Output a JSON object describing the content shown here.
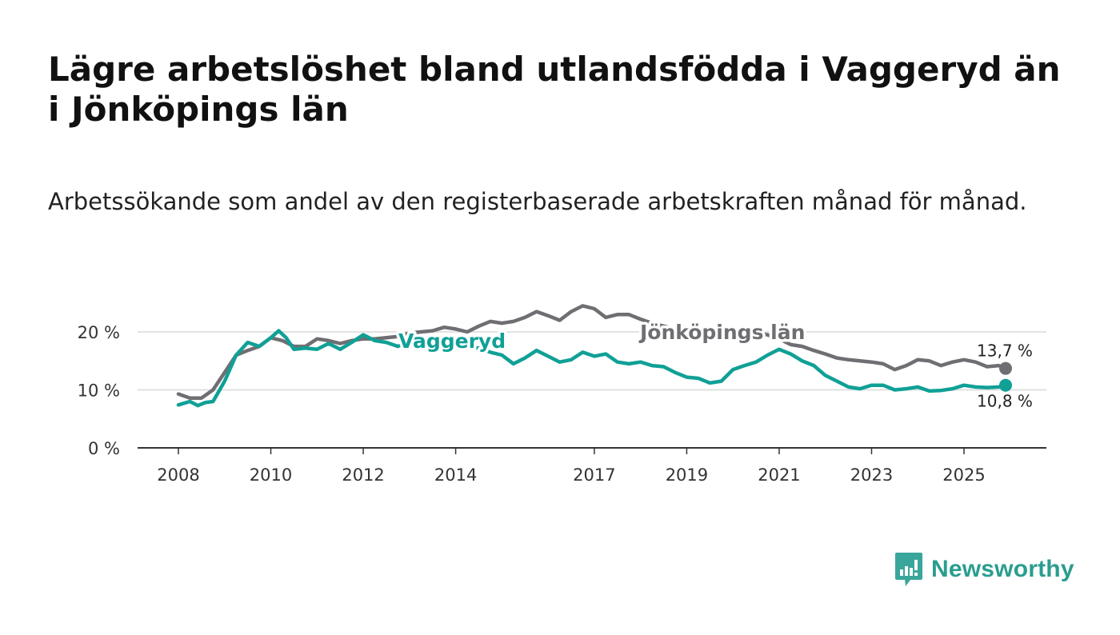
{
  "title": "Lägre arbetslöshet bland utlandsfödda i Vaggeryd än i Jönköpings län",
  "subtitle": "Arbetssökande som andel av den registerbaserade arbetskraften månad för månad.",
  "brand": {
    "name": "Newsworthy",
    "icon": "newsworthy-logo-icon",
    "color": "#3aa59b"
  },
  "chart_data": {
    "type": "line",
    "title": "",
    "xlabel": "",
    "ylabel": "",
    "ylim": [
      0,
      25
    ],
    "xlim": [
      2008.0,
      2025.9
    ],
    "grid": true,
    "x_ticks": [
      2008,
      2010,
      2012,
      2014,
      2017,
      2019,
      2021,
      2023,
      2025
    ],
    "x_tick_labels": [
      "2008",
      "2010",
      "2012",
      "2014",
      "2017",
      "2019",
      "2021",
      "2023",
      "2025"
    ],
    "y_ticks": [
      0,
      10,
      20
    ],
    "y_tick_labels": [
      "0 %",
      "10 %",
      "20 %"
    ],
    "series": [
      {
        "name": "Jönköpings län",
        "label": "Jönköpings län",
        "color": "#6f6f73",
        "end_label": "13,7 %",
        "points": [
          [
            2008.0,
            9.3
          ],
          [
            2008.25,
            8.6
          ],
          [
            2008.5,
            8.6
          ],
          [
            2008.75,
            10.0
          ],
          [
            2009.0,
            13.0
          ],
          [
            2009.25,
            16.0
          ],
          [
            2009.5,
            16.8
          ],
          [
            2009.75,
            17.5
          ],
          [
            2010.0,
            19.0
          ],
          [
            2010.25,
            18.5
          ],
          [
            2010.5,
            17.5
          ],
          [
            2010.75,
            17.5
          ],
          [
            2011.0,
            18.8
          ],
          [
            2011.25,
            18.5
          ],
          [
            2011.5,
            18.0
          ],
          [
            2011.75,
            18.5
          ],
          [
            2012.0,
            18.8
          ],
          [
            2012.25,
            18.8
          ],
          [
            2012.5,
            19.0
          ],
          [
            2012.75,
            19.2
          ],
          [
            2013.0,
            19.8
          ],
          [
            2013.25,
            20.0
          ],
          [
            2013.5,
            20.2
          ],
          [
            2013.75,
            20.8
          ],
          [
            2014.0,
            20.5
          ],
          [
            2014.25,
            20.0
          ],
          [
            2014.5,
            21.0
          ],
          [
            2014.75,
            21.8
          ],
          [
            2015.0,
            21.5
          ],
          [
            2015.25,
            21.8
          ],
          [
            2015.5,
            22.5
          ],
          [
            2015.75,
            23.5
          ],
          [
            2016.0,
            22.8
          ],
          [
            2016.25,
            22.0
          ],
          [
            2016.5,
            23.5
          ],
          [
            2016.75,
            24.5
          ],
          [
            2017.0,
            24.0
          ],
          [
            2017.25,
            22.5
          ],
          [
            2017.5,
            23.0
          ],
          [
            2017.75,
            23.0
          ],
          [
            2018.0,
            22.2
          ],
          [
            2018.25,
            21.5
          ],
          [
            2018.5,
            21.0
          ],
          [
            2018.75,
            20.5
          ],
          [
            2019.0,
            20.3
          ],
          [
            2019.25,
            20.0
          ],
          [
            2019.5,
            19.5
          ],
          [
            2019.75,
            19.5
          ],
          [
            2020.0,
            20.0
          ],
          [
            2020.25,
            19.5
          ],
          [
            2020.5,
            19.8
          ],
          [
            2020.75,
            19.5
          ],
          [
            2021.0,
            18.8
          ],
          [
            2021.25,
            17.8
          ],
          [
            2021.5,
            17.5
          ],
          [
            2021.75,
            16.8
          ],
          [
            2022.0,
            16.2
          ],
          [
            2022.25,
            15.5
          ],
          [
            2022.5,
            15.2
          ],
          [
            2022.75,
            15.0
          ],
          [
            2023.0,
            14.8
          ],
          [
            2023.25,
            14.5
          ],
          [
            2023.5,
            13.5
          ],
          [
            2023.75,
            14.2
          ],
          [
            2024.0,
            15.2
          ],
          [
            2024.25,
            15.0
          ],
          [
            2024.5,
            14.2
          ],
          [
            2024.75,
            14.8
          ],
          [
            2025.0,
            15.2
          ],
          [
            2025.25,
            14.8
          ],
          [
            2025.5,
            14.0
          ],
          [
            2025.75,
            14.2
          ],
          [
            2025.9,
            13.7
          ]
        ]
      },
      {
        "name": "Vaggeryd",
        "label": "Vaggeryd",
        "color": "#10a096",
        "end_label": "10,8 %",
        "points": [
          [
            2008.0,
            7.4
          ],
          [
            2008.25,
            8.0
          ],
          [
            2008.42,
            7.3
          ],
          [
            2008.58,
            7.8
          ],
          [
            2008.75,
            8.0
          ],
          [
            2009.0,
            11.5
          ],
          [
            2009.25,
            16.0
          ],
          [
            2009.5,
            18.2
          ],
          [
            2009.75,
            17.5
          ],
          [
            2010.0,
            19.0
          ],
          [
            2010.17,
            20.2
          ],
          [
            2010.33,
            19.0
          ],
          [
            2010.5,
            17.0
          ],
          [
            2010.75,
            17.2
          ],
          [
            2011.0,
            17.0
          ],
          [
            2011.25,
            18.0
          ],
          [
            2011.5,
            17.0
          ],
          [
            2011.75,
            18.2
          ],
          [
            2012.0,
            19.5
          ],
          [
            2012.25,
            18.5
          ],
          [
            2012.5,
            18.2
          ],
          [
            2012.75,
            17.5
          ],
          [
            2013.0,
            18.5
          ],
          [
            2013.25,
            17.5
          ],
          [
            2013.5,
            17.8
          ],
          [
            2013.75,
            18.0
          ],
          [
            2014.0,
            17.8
          ],
          [
            2014.25,
            17.5
          ],
          [
            2014.5,
            17.2
          ],
          [
            2014.75,
            16.5
          ],
          [
            2015.0,
            16.0
          ],
          [
            2015.25,
            14.5
          ],
          [
            2015.5,
            15.5
          ],
          [
            2015.75,
            16.8
          ],
          [
            2016.0,
            15.8
          ],
          [
            2016.25,
            14.8
          ],
          [
            2016.5,
            15.2
          ],
          [
            2016.75,
            16.5
          ],
          [
            2017.0,
            15.8
          ],
          [
            2017.25,
            16.2
          ],
          [
            2017.5,
            14.8
          ],
          [
            2017.75,
            14.5
          ],
          [
            2018.0,
            14.8
          ],
          [
            2018.25,
            14.2
          ],
          [
            2018.5,
            14.0
          ],
          [
            2018.75,
            13.0
          ],
          [
            2019.0,
            12.2
          ],
          [
            2019.25,
            12.0
          ],
          [
            2019.5,
            11.2
          ],
          [
            2019.75,
            11.5
          ],
          [
            2020.0,
            13.5
          ],
          [
            2020.25,
            14.2
          ],
          [
            2020.5,
            14.8
          ],
          [
            2020.75,
            16.0
          ],
          [
            2021.0,
            17.0
          ],
          [
            2021.25,
            16.2
          ],
          [
            2021.5,
            15.0
          ],
          [
            2021.75,
            14.2
          ],
          [
            2022.0,
            12.5
          ],
          [
            2022.25,
            11.5
          ],
          [
            2022.5,
            10.5
          ],
          [
            2022.75,
            10.2
          ],
          [
            2023.0,
            10.8
          ],
          [
            2023.25,
            10.8
          ],
          [
            2023.5,
            10.0
          ],
          [
            2023.75,
            10.2
          ],
          [
            2024.0,
            10.5
          ],
          [
            2024.25,
            9.8
          ],
          [
            2024.5,
            9.9
          ],
          [
            2024.75,
            10.2
          ],
          [
            2025.0,
            10.8
          ],
          [
            2025.25,
            10.5
          ],
          [
            2025.5,
            10.4
          ],
          [
            2025.75,
            10.5
          ],
          [
            2025.9,
            10.8
          ]
        ]
      }
    ]
  }
}
